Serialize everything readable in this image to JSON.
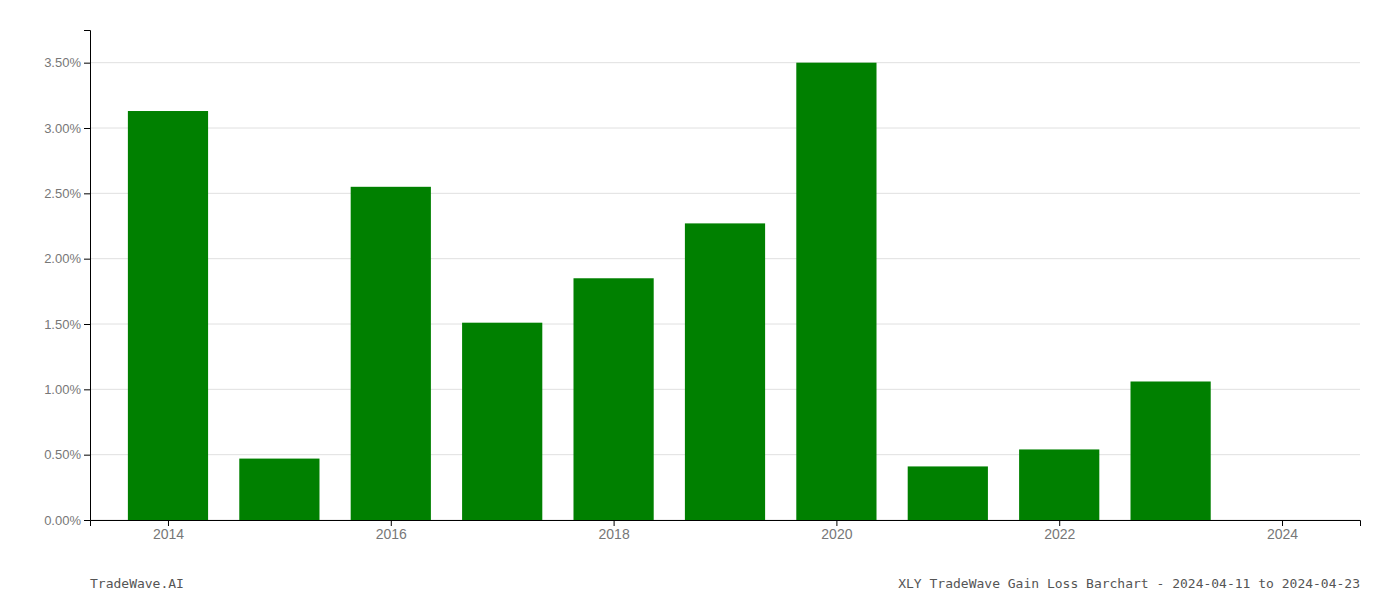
{
  "chart_data": {
    "type": "bar",
    "x": [
      2014,
      2015,
      2016,
      2017,
      2018,
      2019,
      2020,
      2021,
      2022,
      2023,
      2024
    ],
    "values": [
      3.13,
      0.47,
      2.55,
      1.51,
      1.85,
      2.27,
      3.5,
      0.41,
      0.54,
      1.06,
      0.0
    ],
    "color": "#008000",
    "xlim": [
      2013.3,
      2024.7
    ],
    "xticks": [
      2014,
      2016,
      2018,
      2020,
      2022,
      2024
    ],
    "ylim": [
      0,
      3.75
    ],
    "yticks": [
      {
        "value": 0.0,
        "label": "0.00%"
      },
      {
        "value": 0.5,
        "label": "0.50%"
      },
      {
        "value": 1.0,
        "label": "1.00%"
      },
      {
        "value": 1.5,
        "label": "1.50%"
      },
      {
        "value": 2.0,
        "label": "2.00%"
      },
      {
        "value": 2.5,
        "label": "2.50%"
      },
      {
        "value": 3.0,
        "label": "3.00%"
      },
      {
        "value": 3.5,
        "label": "3.50%"
      }
    ],
    "grid": true,
    "annotations": [
      "TradeWave.AI",
      "XLY TradeWave Gain Loss Barchart - 2024-04-11 to 2024-04-23"
    ]
  }
}
